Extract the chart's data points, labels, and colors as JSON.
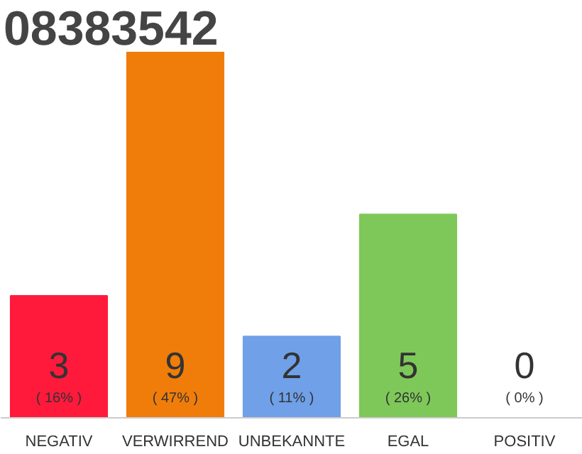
{
  "chart_data": {
    "type": "bar",
    "title": "08383542",
    "categories": [
      "NEGATIV",
      "VERWIRREND",
      "UNBEKANNTE",
      "EGAL",
      "POSITIV"
    ],
    "values": [
      3,
      9,
      2,
      5,
      0
    ],
    "colors": [
      "#ff1a3c",
      "#f07d0a",
      "#6fa0e8",
      "#7ec85a",
      "#cccccc"
    ],
    "data_labels": true,
    "annotations": [
      {
        "text": "( 16% )",
        "x": "NEGATIV",
        "y": 0
      },
      {
        "text": "( 47% )",
        "x": "VERWIRREND",
        "y": 0
      },
      {
        "text": "( 11% )",
        "x": "UNBEKANNTE",
        "y": 0
      },
      {
        "text": "( 26% )",
        "x": "EGAL",
        "y": 0
      },
      {
        "text": "( 0% )",
        "x": "POSITIV",
        "y": 0
      }
    ],
    "grid": false
  }
}
